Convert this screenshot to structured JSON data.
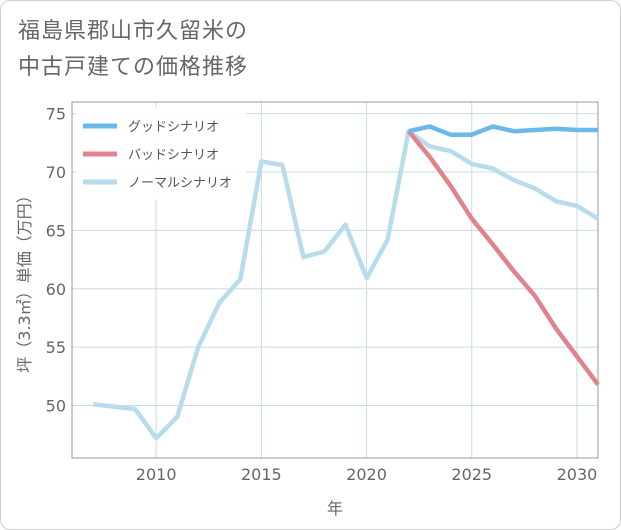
{
  "title_lines": [
    "福島県郡山市久留米の",
    "中古戸建ての価格推移"
  ],
  "chart_data": {
    "type": "line",
    "title": "福島県郡山市久留米の中古戸建ての価格推移",
    "xlabel": "年",
    "ylabel": "坪（3.3㎡）単価（万円）",
    "xlim": [
      2006,
      2031
    ],
    "ylim": [
      45.5,
      76
    ],
    "xticks": [
      2010,
      2015,
      2020,
      2025,
      2030
    ],
    "yticks": [
      50,
      55,
      60,
      65,
      70,
      75
    ],
    "grid": true,
    "legend_position": "top-left",
    "series": [
      {
        "name": "グッドシナリオ",
        "color": "#6cb8ea",
        "x": [
          2022,
          2023,
          2024,
          2025,
          2026,
          2027,
          2028,
          2029,
          2030,
          2031
        ],
        "values": [
          73.5,
          73.9,
          73.2,
          73.2,
          73.9,
          73.5,
          73.6,
          73.7,
          73.6,
          73.6
        ]
      },
      {
        "name": "バッドシナリオ",
        "color": "#e0838d",
        "x": [
          2022,
          2023,
          2024,
          2025,
          2026,
          2027,
          2028,
          2029,
          2030,
          2031
        ],
        "values": [
          73.5,
          71.3,
          68.8,
          66.0,
          63.8,
          61.5,
          59.4,
          56.6,
          54.2,
          51.8
        ]
      },
      {
        "name": "ノーマルシナリオ",
        "color": "#b8dceb",
        "x": [
          2007,
          2008,
          2009,
          2010,
          2011,
          2012,
          2013,
          2014,
          2015,
          2016,
          2017,
          2018,
          2019,
          2020,
          2021,
          2022,
          2023,
          2024,
          2025,
          2026,
          2027,
          2028,
          2029,
          2030,
          2031
        ],
        "values": [
          50.1,
          49.9,
          49.7,
          47.2,
          49.0,
          55.0,
          58.8,
          60.8,
          70.9,
          70.6,
          62.7,
          63.2,
          65.5,
          60.9,
          64.2,
          73.5,
          72.2,
          71.8,
          70.7,
          70.3,
          69.3,
          68.6,
          67.5,
          67.1,
          66.0
        ]
      }
    ]
  }
}
